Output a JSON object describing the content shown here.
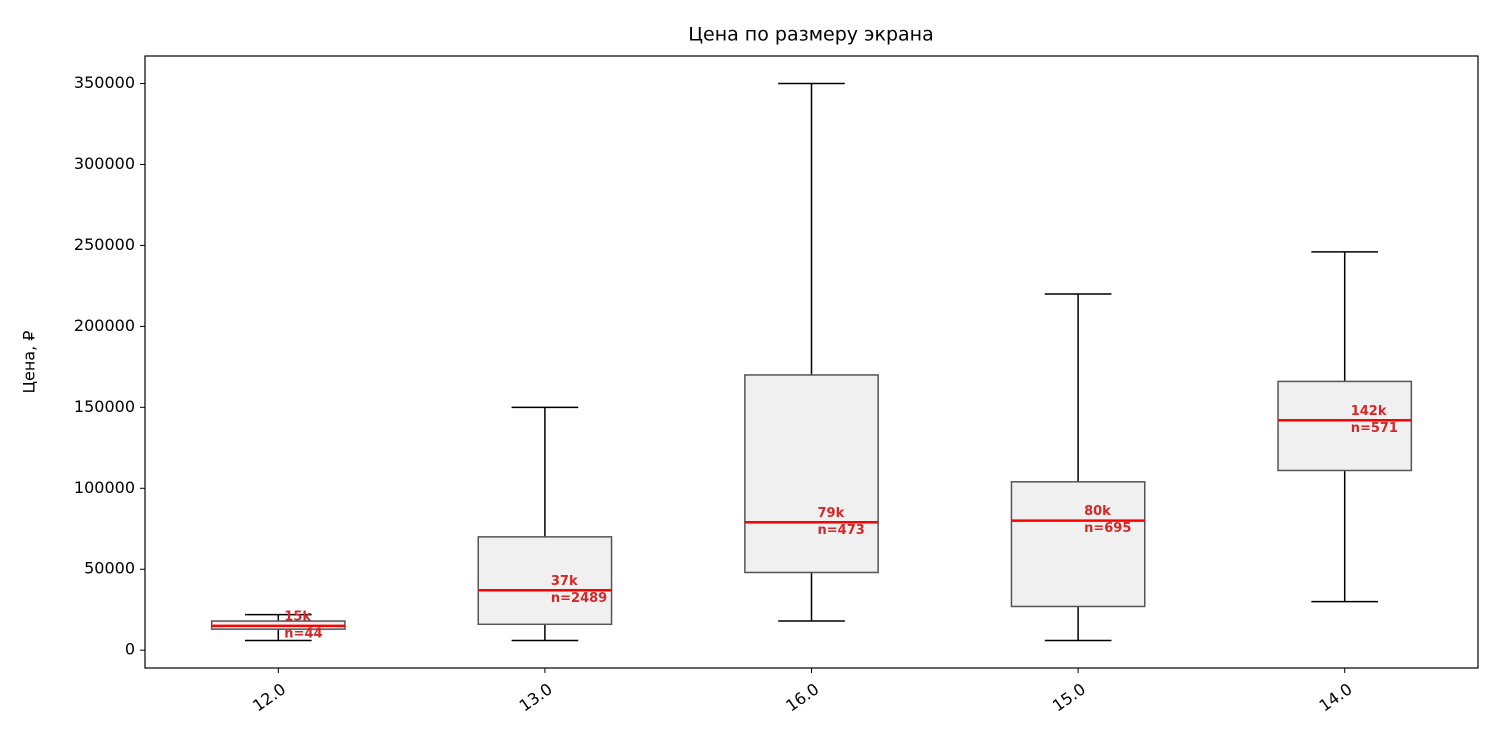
{
  "chart_data": {
    "type": "box",
    "title": "Цена по размеру экрана",
    "y_label": "Цена, ₽",
    "categories": [
      "12.0",
      "13.0",
      "16.0",
      "15.0",
      "14.0"
    ],
    "whislo": [
      6000,
      6000,
      18000,
      6000,
      30000
    ],
    "q1": [
      13000,
      16000,
      48000,
      27000,
      111000
    ],
    "median": [
      15000,
      37000,
      79000,
      80000,
      142000
    ],
    "q3": [
      18000,
      70000,
      170000,
      104000,
      166000
    ],
    "whishi": [
      22000,
      150000,
      350000,
      220000,
      246000
    ],
    "median_labels": [
      "15k",
      "37k",
      "79k",
      "80k",
      "142k"
    ],
    "counts": [
      44,
      2489,
      473,
      695,
      571
    ],
    "count_labels": [
      "n=44",
      "n=2489",
      "n=473",
      "n=695",
      "n=571"
    ],
    "box_color": "#f0f0f0",
    "median_color": "#ff0000",
    "ylim": [
      -11000,
      367000
    ],
    "yticks": [
      0,
      50000,
      100000,
      150000,
      200000,
      250000,
      300000,
      350000
    ],
    "grid": false
  }
}
